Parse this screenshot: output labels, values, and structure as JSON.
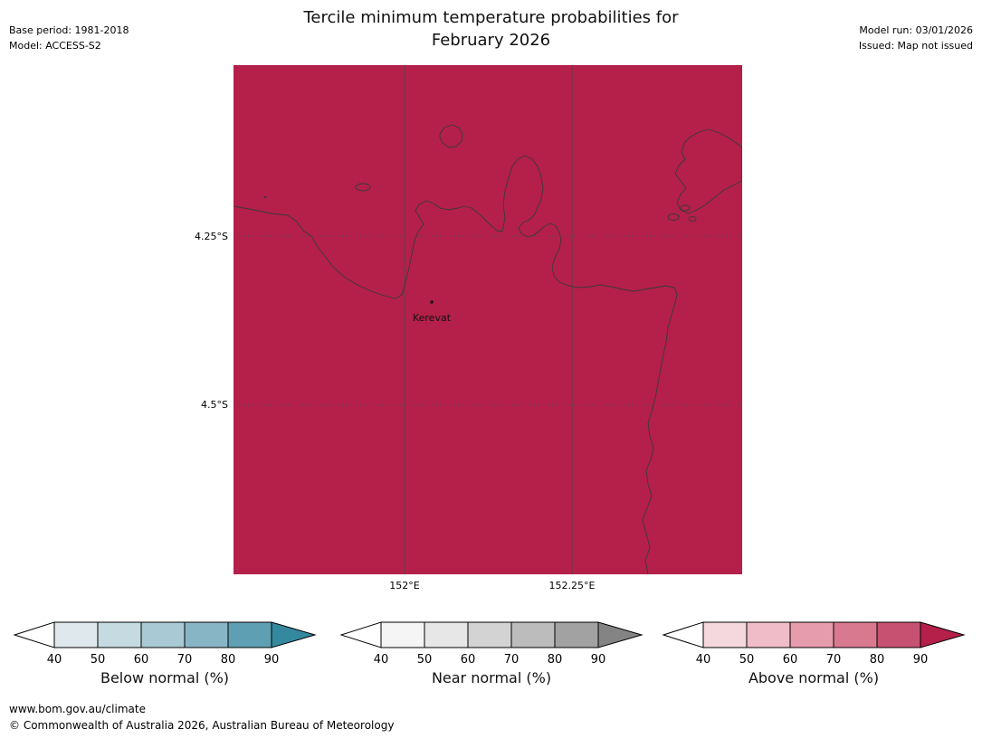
{
  "header": {
    "title_line1": "Tercile minimum temperature probabilities for",
    "title_line2": "February 2026",
    "base_period": "Base period: 1981-2018",
    "model": "Model: ACCESS-S2",
    "model_run": "Model run: 03/01/2026",
    "issued": "Issued: Map not issued"
  },
  "map": {
    "fill_color": "#b4204a",
    "place": {
      "label": "Kerevat"
    },
    "lat_ticks": [
      {
        "label": "4.25°S"
      },
      {
        "label": "4.5°S"
      }
    ],
    "lon_ticks": [
      {
        "label": "152°E"
      },
      {
        "label": "152.25°E"
      }
    ]
  },
  "legends": [
    {
      "title": "Below normal (%)",
      "ticks": [
        "40",
        "50",
        "60",
        "70",
        "80",
        "90"
      ],
      "segment_colors": [
        "#dfe9ed",
        "#c6dae2",
        "#a9cad5",
        "#88b5c5",
        "#5f9fb3"
      ],
      "under_arrow_color": "#ffffff",
      "over_arrow_color": "#35899f"
    },
    {
      "title": "Near normal (%)",
      "ticks": [
        "40",
        "50",
        "60",
        "70",
        "80",
        "90"
      ],
      "segment_colors": [
        "#f5f5f5",
        "#e7e7e7",
        "#d3d3d3",
        "#bcbcbc",
        "#a2a2a2"
      ],
      "under_arrow_color": "#ffffff",
      "over_arrow_color": "#848484"
    },
    {
      "title": "Above normal (%)",
      "ticks": [
        "40",
        "50",
        "60",
        "70",
        "80",
        "90"
      ],
      "segment_colors": [
        "#f4d8de",
        "#efbcc7",
        "#e69cac",
        "#d97990",
        "#c75170"
      ],
      "under_arrow_color": "#ffffff",
      "over_arrow_color": "#b4204a"
    }
  ],
  "footer": {
    "url": "www.bom.gov.au/climate",
    "copyright": "© Commonwealth of Australia 2026, Australian Bureau of Meteorology"
  }
}
